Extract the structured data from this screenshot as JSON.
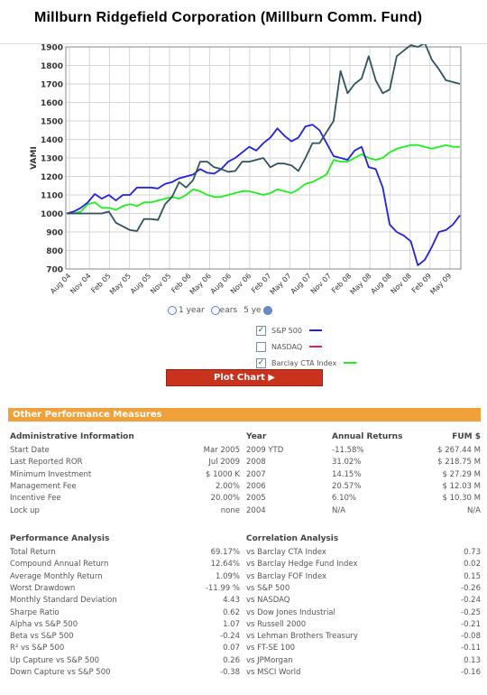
{
  "page": {
    "title": "Millburn Ridgefield Corporation (Millburn Comm. Fund)"
  },
  "chart_data": {
    "type": "line",
    "ylabel": "VAMI",
    "ylim": [
      700,
      1900
    ],
    "yticks": [
      700,
      800,
      900,
      1000,
      1100,
      1200,
      1300,
      1400,
      1500,
      1600,
      1700,
      1800,
      1900
    ],
    "xticks": [
      "Aug 04",
      "Nov 04",
      "Feb 05",
      "May 05",
      "Aug 05",
      "Nov 05",
      "Feb 06",
      "May 06",
      "Aug 06",
      "Nov 06",
      "Feb 07",
      "May 07",
      "Aug 07",
      "Nov 07",
      "Feb 08",
      "May 08",
      "Aug 08",
      "Nov 08",
      "Feb 09",
      "May 09"
    ],
    "grid": true,
    "series": [
      {
        "name": "Millburn Ridgefield Corporation",
        "color": "#30535e",
        "values": [
          1000,
          1000,
          1000,
          1000,
          1000,
          1000,
          1010,
          950,
          930,
          910,
          905,
          970,
          970,
          965,
          1050,
          1090,
          1170,
          1140,
          1180,
          1280,
          1280,
          1250,
          1240,
          1225,
          1230,
          1280,
          1280,
          1290,
          1300,
          1250,
          1270,
          1270,
          1260,
          1230,
          1300,
          1380,
          1380,
          1440,
          1500,
          1770,
          1650,
          1700,
          1730,
          1850,
          1720,
          1650,
          1670,
          1850,
          1880,
          1910,
          1900,
          1920,
          1830,
          1780,
          1720,
          1710,
          1700
        ]
      },
      {
        "name": "S&P 500",
        "color": "#2222dd",
        "values": [
          1000,
          1010,
          1030,
          1060,
          1105,
          1080,
          1100,
          1070,
          1100,
          1100,
          1140,
          1140,
          1140,
          1135,
          1160,
          1170,
          1190,
          1200,
          1210,
          1240,
          1220,
          1215,
          1240,
          1280,
          1300,
          1330,
          1360,
          1340,
          1380,
          1410,
          1460,
          1420,
          1390,
          1410,
          1470,
          1480,
          1450,
          1380,
          1310,
          1300,
          1290,
          1340,
          1360,
          1250,
          1240,
          1140,
          940,
          900,
          880,
          850,
          720,
          750,
          820,
          900,
          910,
          940,
          990
        ]
      },
      {
        "name": "Barclay CTA Index",
        "color": "#22ee22",
        "values": [
          1000,
          1000,
          1010,
          1050,
          1060,
          1030,
          1030,
          1020,
          1040,
          1050,
          1040,
          1060,
          1060,
          1070,
          1080,
          1090,
          1080,
          1100,
          1130,
          1120,
          1100,
          1090,
          1090,
          1100,
          1110,
          1120,
          1120,
          1110,
          1100,
          1110,
          1130,
          1120,
          1110,
          1130,
          1160,
          1170,
          1190,
          1210,
          1290,
          1280,
          1280,
          1300,
          1320,
          1300,
          1290,
          1300,
          1330,
          1350,
          1360,
          1370,
          1370,
          1360,
          1350,
          1360,
          1370,
          1360,
          1360
        ]
      }
    ]
  },
  "controls": {
    "period_options": [
      {
        "label": "1 year"
      },
      {
        "label": "ears"
      },
      {
        "label": "5 ye"
      }
    ],
    "legend": [
      {
        "label": "S&P 500",
        "checked": true,
        "color": "#2222dd"
      },
      {
        "label": "NASDAQ",
        "checked": false,
        "color": "#dd2255"
      },
      {
        "label": "Barclay CTA Index",
        "checked": true,
        "color": "#22ee22"
      }
    ],
    "check_glyph": "✓",
    "plot_button": "Plot Chart ▶"
  },
  "other": {
    "section_title": "Other Performance Measures",
    "admin": {
      "header": "Administrative Information",
      "rows": [
        {
          "label": "Start Date",
          "value": "Mar 2005"
        },
        {
          "label": "Last Reported ROR",
          "value": "Jul 2009"
        },
        {
          "label": "Minimum Investment",
          "value": "$ 1000 K"
        },
        {
          "label": "Management Fee",
          "value": "2.00%"
        },
        {
          "label": "Incentive Fee",
          "value": "20.00%"
        },
        {
          "label": "Lock up",
          "value": "none"
        }
      ]
    },
    "returns": {
      "headers": {
        "year": "Year",
        "annual": "Annual Returns",
        "fum": "FUM $"
      },
      "rows": [
        {
          "year": "2009 YTD",
          "annual": "-11.58%",
          "fum": "$ 267.44 M"
        },
        {
          "year": "2008",
          "annual": "31.02%",
          "fum": "$ 218.75 M"
        },
        {
          "year": "2007",
          "annual": "14.15%",
          "fum": "$ 27.29 M"
        },
        {
          "year": "2006",
          "annual": "20.57%",
          "fum": "$ 12.03 M"
        },
        {
          "year": "2005",
          "annual": "6.10%",
          "fum": "$ 10.30 M"
        },
        {
          "year": "2004",
          "annual": "N/A",
          "fum": "N/A"
        }
      ]
    },
    "performance": {
      "header": "Performance Analysis",
      "rows": [
        {
          "label": "Total Return",
          "value": "69.17%"
        },
        {
          "label": "Compound Annual Return",
          "value": "12.64%"
        },
        {
          "label": "Average Monthly Return",
          "value": "1.09%"
        },
        {
          "label": "Worst Drawdown",
          "value": "-11.99 %"
        },
        {
          "label": "Monthly Standard Deviation",
          "value": "4.43"
        },
        {
          "label": "Sharpe Ratio",
          "value": "0.62"
        },
        {
          "label": "Alpha vs S&P 500",
          "value": "1.07"
        },
        {
          "label": "Beta vs S&P 500",
          "value": "-0.24"
        },
        {
          "label": "R² vs S&P 500",
          "value": "0.07"
        },
        {
          "label": "Up Capture vs S&P 500",
          "value": "0.26"
        },
        {
          "label": "Down Capture vs S&P 500",
          "value": "-0.38"
        }
      ]
    },
    "correlation": {
      "header": "Correlation Analysis",
      "rows": [
        {
          "label": "vs Barclay CTA Index",
          "value": "0.73"
        },
        {
          "label": "vs Barclay Hedge Fund Index",
          "value": "0.02"
        },
        {
          "label": "vs Barclay FOF Index",
          "value": "0.15"
        },
        {
          "label": "vs S&P 500",
          "value": "-0.26"
        },
        {
          "label": "vs NASDAQ",
          "value": "-0.24"
        },
        {
          "label": "vs Dow Jones Industrial",
          "value": "-0.25"
        },
        {
          "label": "vs Russell 2000",
          "value": "-0.21"
        },
        {
          "label": "vs Lehman Brothers Treasury",
          "value": "-0.08"
        },
        {
          "label": "vs FT-SE 100",
          "value": "-0.11"
        },
        {
          "label": "vs JPMorgan",
          "value": "0.13"
        },
        {
          "label": "vs MSCI World",
          "value": "-0.16"
        }
      ]
    }
  }
}
